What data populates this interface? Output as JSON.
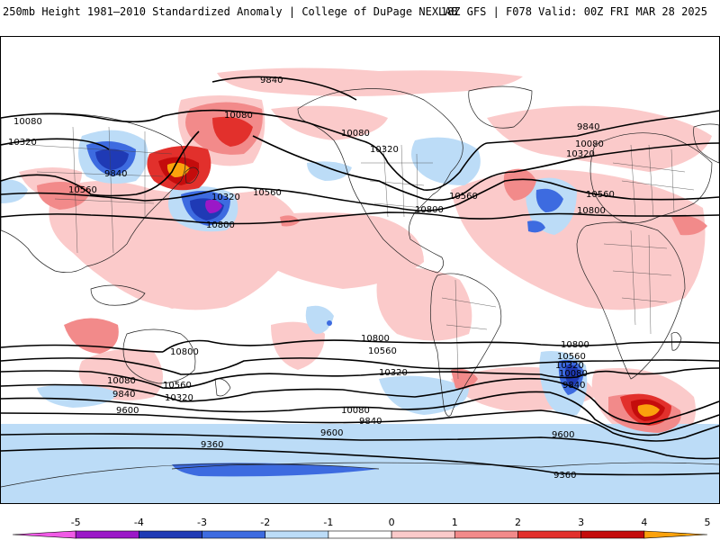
{
  "header": {
    "title_left": "250mb Height 1981–2010 Standardized Anomaly | College of DuPage NEXLAB",
    "title_right": "18Z GFS | F078 Valid: 00Z FRI MAR 28 2025"
  },
  "colorbar": {
    "ticks": [
      "-5",
      "-4",
      "-3",
      "-2",
      "-1",
      "0",
      "1",
      "2",
      "3",
      "4",
      "5"
    ],
    "colors": [
      "#f05ae6",
      "#9b18c7",
      "#1f3ab5",
      "#3d6be0",
      "#bcdcf7",
      "#ffffff",
      "#fbcaca",
      "#f28a8a",
      "#e2302c",
      "#c40c0c",
      "#fba20c"
    ]
  },
  "contour_labels": [
    {
      "id": "l1",
      "text": "9840"
    },
    {
      "id": "l2",
      "text": "10080"
    },
    {
      "id": "l3",
      "text": "10320"
    },
    {
      "id": "l4",
      "text": "10080"
    },
    {
      "id": "l5",
      "text": "9840"
    },
    {
      "id": "l6",
      "text": "10560"
    },
    {
      "id": "l7",
      "text": "10320"
    },
    {
      "id": "l8",
      "text": "10560"
    },
    {
      "id": "l9",
      "text": "10800"
    },
    {
      "id": "l10",
      "text": "10080"
    },
    {
      "id": "l11",
      "text": "10320"
    },
    {
      "id": "l12",
      "text": "10560"
    },
    {
      "id": "l13",
      "text": "10800"
    },
    {
      "id": "l14",
      "text": "9840"
    },
    {
      "id": "l15",
      "text": "10080"
    },
    {
      "id": "l16",
      "text": "10320"
    },
    {
      "id": "l17",
      "text": "10560"
    },
    {
      "id": "l18",
      "text": "10800"
    },
    {
      "id": "l19",
      "text": "10800"
    },
    {
      "id": "l20",
      "text": "10560"
    },
    {
      "id": "l21",
      "text": "10320"
    },
    {
      "id": "l22",
      "text": "10080"
    },
    {
      "id": "l23",
      "text": "9840"
    },
    {
      "id": "l24",
      "text": "9600"
    },
    {
      "id": "l25",
      "text": "9360"
    },
    {
      "id": "l26",
      "text": "10800"
    },
    {
      "id": "l27",
      "text": "10560"
    },
    {
      "id": "l28",
      "text": "10320"
    },
    {
      "id": "l29",
      "text": "10080"
    },
    {
      "id": "l30",
      "text": "9840"
    },
    {
      "id": "l31",
      "text": "9600"
    },
    {
      "id": "l32",
      "text": "10800"
    },
    {
      "id": "l33",
      "text": "10560"
    },
    {
      "id": "l34",
      "text": "10320"
    },
    {
      "id": "l35",
      "text": "10080"
    },
    {
      "id": "l36",
      "text": "9840"
    },
    {
      "id": "l37",
      "text": "9600"
    },
    {
      "id": "l38",
      "text": "9360"
    }
  ]
}
